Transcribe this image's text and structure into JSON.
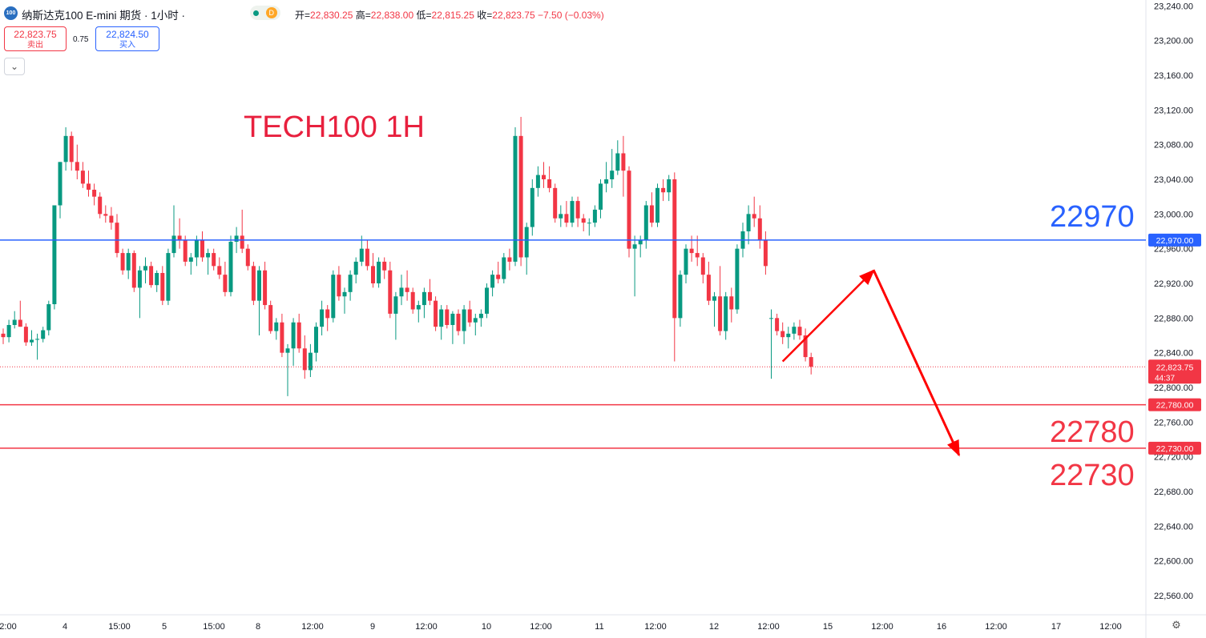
{
  "header": {
    "logo_text": "100",
    "symbol_title": "纳斯达克100 E-mini 期货 · 1小时 ·",
    "d_label": "D",
    "ohlc": {
      "open_label": "开=",
      "open": "22,830.25",
      "high_label": "高=",
      "high": "22,838.00",
      "low_label": "低=",
      "low": "22,815.25",
      "close_label": "收=",
      "close": "22,823.75",
      "change": "−7.50 (−0.03%)"
    }
  },
  "trade": {
    "sell_price": "22,823.75",
    "sell_label": "卖出",
    "spread": "0.75",
    "buy_price": "22,824.50",
    "buy_label": "买入"
  },
  "collapse_icon": "chevron-down-icon",
  "settings_icon": "gear-icon",
  "colors": {
    "up": "#089981",
    "down": "#f23645",
    "blue": "#2962ff",
    "red_label": "#e8203e",
    "arrow": "#ff0000"
  },
  "chart_data": {
    "type": "candlestick",
    "title": "TECH100 1H",
    "x_ticks": [
      "2:00",
      "4",
      "15:00",
      "5",
      "15:00",
      "8",
      "12:00",
      "9",
      "12:00",
      "10",
      "12:00",
      "11",
      "12:00",
      "12",
      "12:00",
      "15",
      "12:00",
      "16",
      "12:00",
      "17",
      "12:00"
    ],
    "y_ticks": [
      "23,240.00",
      "23,200.00",
      "23,160.00",
      "23,120.00",
      "23,080.00",
      "23,040.00",
      "23,000.00",
      "22,960.00",
      "22,920.00",
      "22,880.00",
      "22,840.00",
      "22,800.00",
      "22,760.00",
      "22,720.00",
      "22,680.00",
      "22,640.00",
      "22,600.00",
      "22,560.00"
    ],
    "ylim": [
      22548,
      23244
    ],
    "current_price": {
      "value": 22823.75,
      "label": "22,823.75",
      "countdown": "44:37"
    },
    "levels": [
      {
        "value": 22970,
        "tag": "22,970.00",
        "big_label": "22970",
        "color": "#2962ff"
      },
      {
        "value": 22780,
        "tag": "22,780.00",
        "big_label": "22780",
        "color": "#f23645"
      },
      {
        "value": 22730,
        "tag": "22,730.00",
        "big_label": "22730",
        "color": "#f23645"
      }
    ],
    "projection_arrow": [
      {
        "bar": 137,
        "price": 22830
      },
      {
        "bar": 153,
        "price": 22935
      },
      {
        "bar": 168,
        "price": 22722
      }
    ],
    "candles": [
      [
        22862,
        22868,
        22850,
        22858
      ],
      [
        22858,
        22878,
        22852,
        22872
      ],
      [
        22872,
        22888,
        22868,
        22878
      ],
      [
        22878,
        22900,
        22870,
        22870
      ],
      [
        22870,
        22874,
        22848,
        22852
      ],
      [
        22852,
        22866,
        22848,
        22855
      ],
      [
        22855,
        22862,
        22832,
        22856
      ],
      [
        22856,
        22870,
        22852,
        22866
      ],
      [
        22866,
        22900,
        22860,
        22896
      ],
      [
        22896,
        23010,
        22890,
        23010
      ],
      [
        23010,
        23060,
        22995,
        23060
      ],
      [
        23060,
        23100,
        23050,
        23090
      ],
      [
        23090,
        23095,
        23050,
        23060
      ],
      [
        23060,
        23080,
        23040,
        23050
      ],
      [
        23050,
        23060,
        23030,
        23035
      ],
      [
        23035,
        23050,
        23020,
        23028
      ],
      [
        23028,
        23035,
        23010,
        23020
      ],
      [
        23020,
        23025,
        22995,
        23000
      ],
      [
        23000,
        23010,
        22990,
        22998
      ],
      [
        22998,
        23008,
        22982,
        22990
      ],
      [
        22990,
        23000,
        22950,
        22955
      ],
      [
        22955,
        22960,
        22930,
        22935
      ],
      [
        22935,
        22960,
        22925,
        22955
      ],
      [
        22955,
        22958,
        22910,
        22915
      ],
      [
        22915,
        22940,
        22880,
        22935
      ],
      [
        22935,
        22950,
        22920,
        22940
      ],
      [
        22940,
        22945,
        22915,
        22918
      ],
      [
        22918,
        22935,
        22910,
        22932
      ],
      [
        22932,
        22940,
        22895,
        22900
      ],
      [
        22900,
        22960,
        22895,
        22955
      ],
      [
        22955,
        23010,
        22950,
        22975
      ],
      [
        22975,
        22995,
        22960,
        22970
      ],
      [
        22970,
        22975,
        22940,
        22945
      ],
      [
        22945,
        22955,
        22930,
        22950
      ],
      [
        22950,
        22975,
        22940,
        22970
      ],
      [
        22970,
        22980,
        22945,
        22950
      ],
      [
        22950,
        22960,
        22930,
        22955
      ],
      [
        22955,
        22960,
        22935,
        22940
      ],
      [
        22940,
        22950,
        22925,
        22930
      ],
      [
        22930,
        22945,
        22905,
        22910
      ],
      [
        22910,
        22975,
        22905,
        22968
      ],
      [
        22968,
        22985,
        22955,
        22975
      ],
      [
        22975,
        23005,
        22955,
        22960
      ],
      [
        22960,
        22965,
        22935,
        22940
      ],
      [
        22940,
        22945,
        22895,
        22900
      ],
      [
        22900,
        22940,
        22860,
        22935
      ],
      [
        22935,
        22945,
        22890,
        22895
      ],
      [
        22895,
        22900,
        22862,
        22865
      ],
      [
        22865,
        22880,
        22855,
        22875
      ],
      [
        22875,
        22885,
        22835,
        22840
      ],
      [
        22840,
        22850,
        22790,
        22845
      ],
      [
        22845,
        22880,
        22825,
        22875
      ],
      [
        22875,
        22885,
        22840,
        22845
      ],
      [
        22845,
        22860,
        22810,
        22820
      ],
      [
        22820,
        22850,
        22812,
        22840
      ],
      [
        22840,
        22875,
        22830,
        22870
      ],
      [
        22870,
        22900,
        22860,
        22890
      ],
      [
        22890,
        22895,
        22865,
        22880
      ],
      [
        22880,
        22935,
        22875,
        22930
      ],
      [
        22930,
        22940,
        22900,
        22905
      ],
      [
        22905,
        22915,
        22885,
        22910
      ],
      [
        22910,
        22935,
        22900,
        22930
      ],
      [
        22930,
        22950,
        22920,
        22945
      ],
      [
        22945,
        22975,
        22940,
        22960
      ],
      [
        22960,
        22970,
        22935,
        22940
      ],
      [
        22940,
        22955,
        22915,
        22920
      ],
      [
        22920,
        22950,
        22915,
        22945
      ],
      [
        22945,
        22950,
        22925,
        22935
      ],
      [
        22935,
        22945,
        22880,
        22885
      ],
      [
        22885,
        22910,
        22855,
        22905
      ],
      [
        22905,
        22930,
        22895,
        22915
      ],
      [
        22915,
        22935,
        22900,
        22910
      ],
      [
        22910,
        22915,
        22885,
        22890
      ],
      [
        22890,
        22900,
        22875,
        22895
      ],
      [
        22895,
        22915,
        22880,
        22910
      ],
      [
        22910,
        22925,
        22895,
        22900
      ],
      [
        22900,
        22905,
        22865,
        22870
      ],
      [
        22870,
        22895,
        22855,
        22890
      ],
      [
        22890,
        22895,
        22868,
        22872
      ],
      [
        22872,
        22888,
        22850,
        22885
      ],
      [
        22885,
        22890,
        22860,
        22865
      ],
      [
        22865,
        22895,
        22850,
        22890
      ],
      [
        22890,
        22900,
        22870,
        22875
      ],
      [
        22875,
        22885,
        22860,
        22880
      ],
      [
        22880,
        22890,
        22870,
        22885
      ],
      [
        22885,
        22920,
        22880,
        22915
      ],
      [
        22915,
        22935,
        22905,
        22930
      ],
      [
        22930,
        22945,
        22920,
        22925
      ],
      [
        22925,
        22955,
        22920,
        22950
      ],
      [
        22950,
        22960,
        22935,
        22945
      ],
      [
        22945,
        23100,
        22940,
        23090
      ],
      [
        23090,
        23112,
        22940,
        22950
      ],
      [
        22950,
        22990,
        22930,
        22985
      ],
      [
        22985,
        23040,
        22975,
        23030
      ],
      [
        23030,
        23055,
        23020,
        23045
      ],
      [
        23045,
        23060,
        23030,
        23040
      ],
      [
        23040,
        23055,
        23025,
        23030
      ],
      [
        23030,
        23035,
        22990,
        22995
      ],
      [
        22995,
        23010,
        22985,
        23000
      ],
      [
        23000,
        23015,
        22985,
        22990
      ],
      [
        22990,
        23020,
        22985,
        23015
      ],
      [
        23015,
        23020,
        22985,
        22995
      ],
      [
        22995,
        23000,
        22980,
        22990
      ],
      [
        22990,
        22995,
        22975,
        22990
      ],
      [
        22990,
        23010,
        22985,
        23005
      ],
      [
        23005,
        23040,
        22995,
        23035
      ],
      [
        23035,
        23060,
        23025,
        23040
      ],
      [
        23040,
        23075,
        23030,
        23050
      ],
      [
        23050,
        23085,
        23045,
        23070
      ],
      [
        23070,
        23090,
        23020,
        23050
      ],
      [
        23050,
        23055,
        22950,
        22960
      ],
      [
        22960,
        22975,
        22905,
        22965
      ],
      [
        22965,
        22975,
        22950,
        22970
      ],
      [
        22970,
        23015,
        22960,
        23010
      ],
      [
        23010,
        23025,
        22985,
        22990
      ],
      [
        22990,
        23035,
        22985,
        23030
      ],
      [
        23030,
        23040,
        23015,
        23025
      ],
      [
        23025,
        23045,
        23015,
        23040
      ],
      [
        23040,
        23048,
        22830,
        22880
      ],
      [
        22880,
        22935,
        22870,
        22930
      ],
      [
        22930,
        22965,
        22920,
        22960
      ],
      [
        22960,
        22975,
        22945,
        22955
      ],
      [
        22955,
        22975,
        22940,
        22950
      ],
      [
        22950,
        22955,
        22920,
        22930
      ],
      [
        22930,
        22945,
        22895,
        22900
      ],
      [
        22900,
        22910,
        22870,
        22905
      ],
      [
        22905,
        22940,
        22860,
        22865
      ],
      [
        22865,
        22910,
        22855,
        22905
      ],
      [
        22905,
        22915,
        22875,
        22890
      ],
      [
        22890,
        22965,
        22885,
        22960
      ],
      [
        22960,
        22990,
        22950,
        22980
      ],
      [
        22980,
        23010,
        22965,
        23000
      ],
      [
        23000,
        23020,
        22985,
        22995
      ],
      [
        22995,
        23010,
        22960,
        22970
      ],
      [
        22970,
        22980,
        22930,
        22940
      ],
      [
        22880,
        22890,
        22810,
        22880
      ],
      [
        22880,
        22885,
        22860,
        22865
      ],
      [
        22865,
        22875,
        22850,
        22858
      ],
      [
        22858,
        22870,
        22845,
        22862
      ],
      [
        22862,
        22875,
        22855,
        22870
      ],
      [
        22870,
        22878,
        22855,
        22860
      ],
      [
        22860,
        22868,
        22830,
        22835
      ],
      [
        22835,
        22840,
        22815,
        22824
      ]
    ]
  }
}
